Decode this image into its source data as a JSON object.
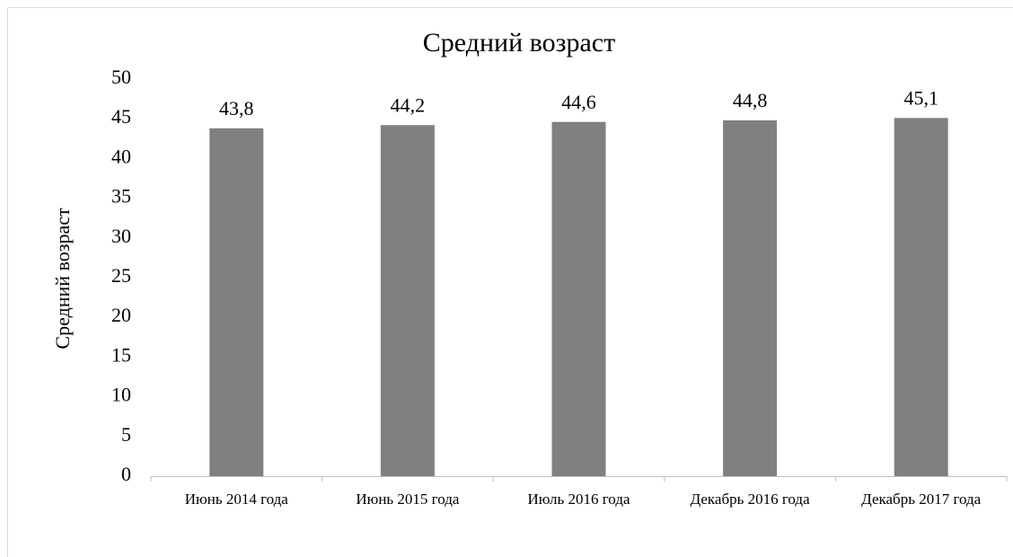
{
  "chart_data": {
    "type": "bar",
    "title": "Средний возраст",
    "y_label": "Средний возраст",
    "categories": [
      "Июнь 2014 года",
      "Июнь 2015 года",
      "Июль 2016 года",
      "Декабрь 2016 года",
      "Декабрь 2017 года"
    ],
    "values": [
      43.8,
      44.2,
      44.6,
      44.8,
      45.1
    ],
    "value_labels": [
      "43,8",
      "44,2",
      "44,6",
      "44,8",
      "45,1"
    ],
    "color": "#808080",
    "ylim": [
      0,
      50
    ],
    "yticks": [
      0,
      5,
      10,
      15,
      20,
      25,
      30,
      35,
      40,
      45,
      50
    ],
    "grid": false
  }
}
